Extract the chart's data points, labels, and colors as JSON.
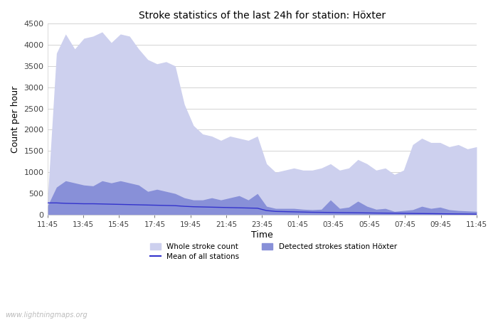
{
  "title": "Stroke statistics of the last 24h for station: Höxter",
  "xlabel": "Time",
  "ylabel": "Count per hour",
  "ylim": [
    0,
    4500
  ],
  "yticks": [
    0,
    500,
    1000,
    1500,
    2000,
    2500,
    3000,
    3500,
    4000,
    4500
  ],
  "xtick_labels": [
    "11:45",
    "13:45",
    "15:45",
    "17:45",
    "19:45",
    "21:45",
    "23:45",
    "01:45",
    "03:45",
    "05:45",
    "07:45",
    "09:45",
    "11:45"
  ],
  "color_whole": "#cdd0ee",
  "color_detected": "#8890d8",
  "color_mean_line": "#3333cc",
  "watermark": "www.lightningmaps.org",
  "legend_entries": [
    "Whole stroke count",
    "Mean of all stations",
    "Detected strokes station Höxter"
  ],
  "background_color": "#ffffff",
  "whole_stroke": [
    280,
    3800,
    4250,
    3900,
    4150,
    4200,
    4300,
    4050,
    4250,
    4200,
    3900,
    3650,
    3550,
    3600,
    3500,
    2600,
    2100,
    1900,
    1850,
    1750,
    1850,
    1800,
    1750,
    1850,
    1200,
    1000,
    1050,
    1100,
    1050,
    1050,
    1100,
    1200,
    1050,
    1100,
    1300,
    1200,
    1050,
    1100,
    950,
    1050,
    1650,
    1800,
    1700,
    1700,
    1600,
    1650,
    1550,
    1600
  ],
  "detected_stroke": [
    200,
    650,
    800,
    750,
    700,
    680,
    800,
    750,
    800,
    750,
    700,
    550,
    600,
    550,
    500,
    400,
    350,
    350,
    400,
    350,
    400,
    450,
    350,
    500,
    200,
    150,
    150,
    150,
    130,
    120,
    130,
    350,
    150,
    180,
    320,
    200,
    130,
    150,
    80,
    100,
    120,
    200,
    150,
    180,
    120,
    100,
    90,
    80
  ],
  "mean_line": [
    280,
    280,
    270,
    265,
    260,
    260,
    255,
    250,
    245,
    240,
    235,
    230,
    225,
    220,
    215,
    200,
    190,
    185,
    180,
    175,
    170,
    165,
    160,
    155,
    100,
    80,
    75,
    70,
    65,
    60,
    58,
    55,
    52,
    50,
    48,
    45,
    42,
    40,
    38,
    35,
    32,
    30,
    28,
    25,
    22,
    20,
    18,
    15
  ]
}
